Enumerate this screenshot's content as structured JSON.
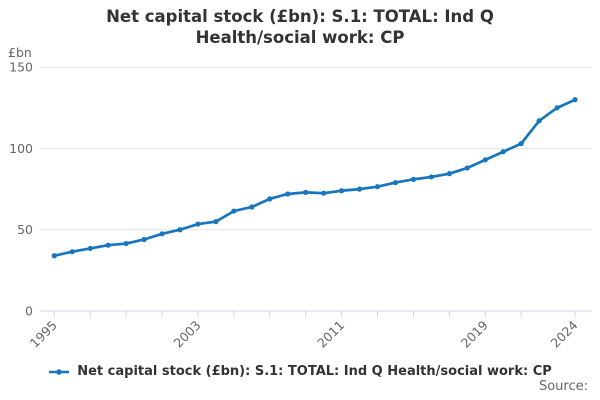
{
  "title": "Net capital stock (£bn): S.1: TOTAL: Ind Q Health/social work: CP",
  "unit_label": "£bn",
  "source_label": "Source:",
  "legend": {
    "label": "Net capital stock (£bn): S.1: TOTAL: Ind Q Health/social work: CP"
  },
  "colors": {
    "line": "#1776be",
    "grid": "#e6e6e6",
    "axis": "#ccd6eb",
    "tick_label": "#666666",
    "title_text": "#333333"
  },
  "chart_data": {
    "type": "line",
    "title": "Net capital stock (£bn): S.1: TOTAL: Ind Q Health/social work: CP",
    "xlabel": "",
    "ylabel": "£bn",
    "ylim": [
      0,
      150
    ],
    "yticks": [
      0,
      50,
      100,
      150
    ],
    "grid": "horizontal",
    "legend_position": "bottom",
    "x": [
      1995,
      1996,
      1997,
      1998,
      1999,
      2000,
      2001,
      2002,
      2003,
      2004,
      2005,
      2006,
      2007,
      2008,
      2009,
      2010,
      2011,
      2012,
      2013,
      2014,
      2015,
      2016,
      2017,
      2018,
      2019,
      2020,
      2021,
      2022,
      2023,
      2024
    ],
    "series": [
      {
        "name": "Net capital stock (£bn): S.1: TOTAL: Ind Q Health/social work: CP",
        "values": [
          34,
          36.5,
          38.5,
          40.5,
          41.5,
          44,
          47.5,
          50,
          53.5,
          55,
          61.5,
          64,
          69,
          72,
          73,
          72.5,
          74,
          75,
          76.5,
          79,
          81,
          82.5,
          84.5,
          88,
          93,
          98,
          103,
          117,
          125,
          130
        ]
      }
    ],
    "xticks": [
      1995,
      1997,
      1999,
      2001,
      2003,
      2005,
      2007,
      2009,
      2011,
      2013,
      2015,
      2017,
      2019,
      2021,
      2024
    ],
    "xtick_labels": [
      1995,
      2003,
      2011,
      2019,
      2024
    ]
  }
}
